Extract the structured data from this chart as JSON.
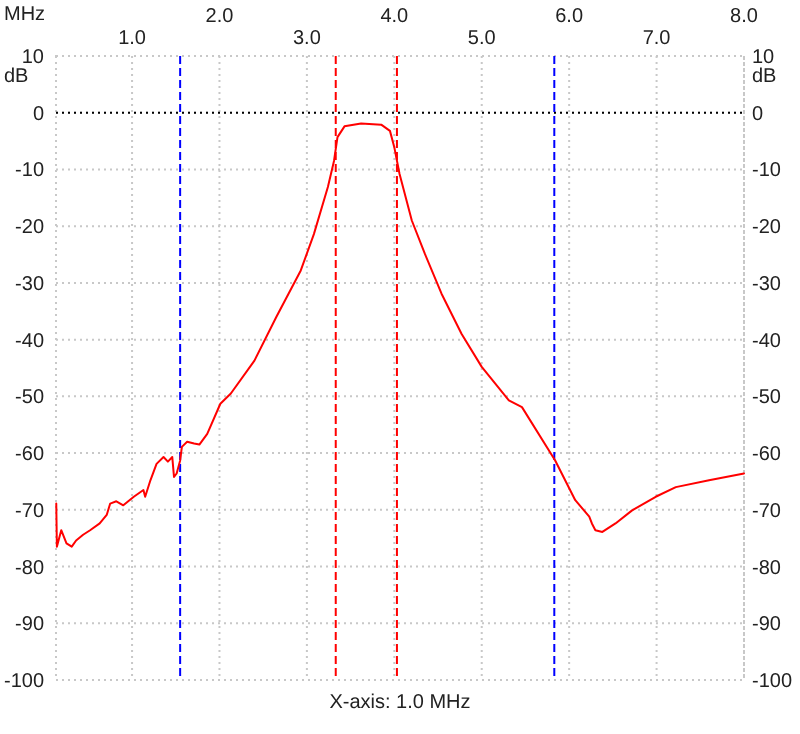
{
  "chart_data": {
    "type": "line",
    "xlabel": "X-axis: 1.0 MHz",
    "ylabel": "dB",
    "y2label": "dB",
    "annotations": [
      "MHz"
    ],
    "xlim": [
      0.13,
      8.0
    ],
    "ylim": [
      -100,
      10
    ],
    "y2lim": [
      -100,
      10
    ],
    "xticks": [
      {
        "value": 1,
        "label": "1.0"
      },
      {
        "value": 3,
        "label": "3.0"
      },
      {
        "value": 5,
        "label": "5.0"
      },
      {
        "value": 7,
        "label": "7.0"
      }
    ],
    "x2lim": [
      0.13,
      8.0
    ],
    "x2ticks": [
      {
        "value": 2,
        "label": "2.0"
      },
      {
        "value": 4,
        "label": "4.0"
      },
      {
        "value": 6,
        "label": "6.0"
      },
      {
        "value": 8,
        "label": "8.0"
      }
    ],
    "yticks": [
      10,
      0,
      -10,
      -20,
      -30,
      -40,
      -50,
      -60,
      -70,
      -80,
      -90,
      -100
    ],
    "y2ticks": [
      10,
      0,
      -10,
      -20,
      -30,
      -40,
      -50,
      -60,
      -70,
      -80,
      -90,
      -100
    ],
    "grid": true,
    "line_style": "solid",
    "ref_lines": [
      {
        "axis": "y",
        "value": 0,
        "color": "#000000",
        "line_style": "dotted"
      },
      {
        "axis": "x",
        "value": 1.55,
        "color": "#0000ff",
        "line_style": "dashed"
      },
      {
        "axis": "x",
        "value": 3.33,
        "color": "#ff0000",
        "line_style": "dashed"
      },
      {
        "axis": "x",
        "value": 4.03,
        "color": "#ff0000",
        "line_style": "dashed"
      },
      {
        "axis": "x",
        "value": 5.83,
        "color": "#0000ff",
        "line_style": "dashed"
      }
    ],
    "series": [
      {
        "color": "#ff0000",
        "x": [
          0.133,
          0.14,
          0.19,
          0.25,
          0.31,
          0.36,
          0.44,
          0.52,
          0.63,
          0.71,
          0.75,
          0.82,
          0.9,
          1.02,
          1.13,
          1.15,
          1.21,
          1.28,
          1.36,
          1.41,
          1.46,
          1.48,
          1.51,
          1.55,
          1.57,
          1.63,
          1.71,
          1.77,
          1.86,
          2.01,
          2.13,
          2.4,
          2.65,
          2.93,
          3.08,
          3.24,
          3.31,
          3.35,
          3.43,
          3.62,
          3.85,
          3.95,
          4.0,
          4.06,
          4.2,
          4.35,
          4.54,
          4.77,
          5.0,
          5.31,
          5.46,
          5.84,
          6.07,
          6.23,
          6.26,
          6.3,
          6.38,
          6.53,
          6.72,
          6.99,
          7.22,
          7.6,
          8.0
        ],
        "values": [
          -68.9,
          -76.5,
          -73.6,
          -75.9,
          -76.5,
          -75.4,
          -74.4,
          -73.6,
          -72.4,
          -70.9,
          -68.9,
          -68.5,
          -69.2,
          -67.7,
          -66.5,
          -67.7,
          -64.8,
          -61.9,
          -60.7,
          -61.5,
          -60.7,
          -64.2,
          -63.6,
          -61.3,
          -58.9,
          -58.0,
          -58.3,
          -58.5,
          -56.6,
          -51.3,
          -49.5,
          -43.7,
          -36.0,
          -27.8,
          -21.4,
          -13.1,
          -8.5,
          -4.3,
          -2.4,
          -1.9,
          -2.1,
          -3.2,
          -6.1,
          -10.8,
          -19.0,
          -24.9,
          -31.9,
          -39.0,
          -44.8,
          -50.7,
          -51.9,
          -61.3,
          -68.3,
          -71.2,
          -72.4,
          -73.6,
          -73.9,
          -72.4,
          -70.1,
          -67.7,
          -66.0,
          -64.8,
          -63.6
        ]
      }
    ]
  }
}
